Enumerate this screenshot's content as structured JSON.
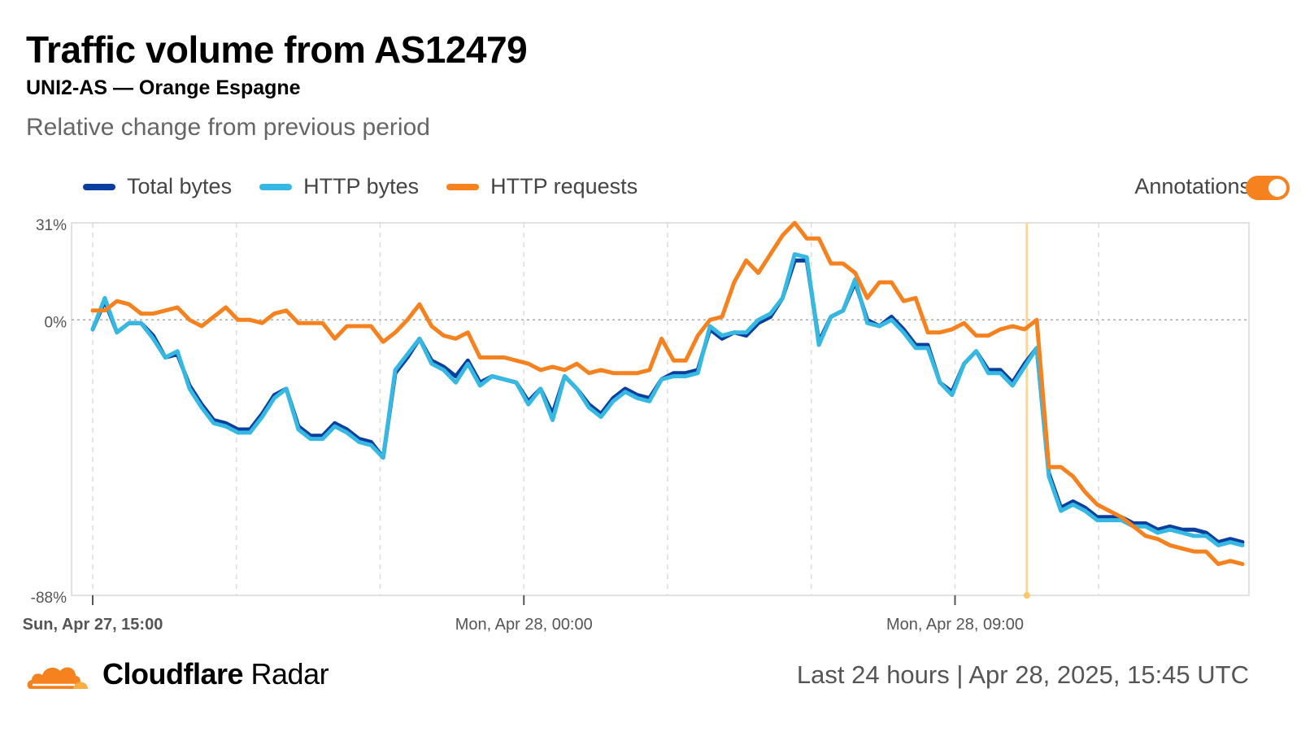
{
  "header": {
    "title": "Traffic volume from AS12479",
    "subtitle": "UNI2-AS — Orange Espagne",
    "caption": "Relative change from previous period"
  },
  "legend": [
    {
      "label": "Total bytes",
      "color": "#0a3fa0"
    },
    {
      "label": "HTTP bytes",
      "color": "#35b9e3"
    },
    {
      "label": "HTTP requests",
      "color": "#f6821f"
    }
  ],
  "annotations_toggle": {
    "label": "Annotations",
    "on": true,
    "color": "#f6821f"
  },
  "footer": {
    "brand_bold": "Cloudflare",
    "brand_regular": "Radar",
    "period": "Last 24 hours",
    "separator": "|",
    "timestamp": "Apr 28, 2025, 15:45 UTC"
  },
  "icons": {
    "brand": "cloudflare-cloud-icon"
  },
  "chart_data": {
    "type": "line",
    "ylim": [
      -88,
      31
    ],
    "y_ticks": [
      {
        "value": 31,
        "label": "31%"
      },
      {
        "value": 0,
        "label": "0%"
      },
      {
        "value": -88,
        "label": "-88%"
      }
    ],
    "x_domain_hours": [
      0,
      24
    ],
    "x_ticks": [
      {
        "hour": 0,
        "label": "Sun, Apr 27, 15:00",
        "bold": true
      },
      {
        "hour": 9,
        "label": "Mon, Apr 28, 00:00",
        "bold": false
      },
      {
        "hour": 18,
        "label": "Mon, Apr 28, 09:00",
        "bold": false
      }
    ],
    "vertical_grid_hours": [
      0,
      3,
      6,
      9,
      12,
      15,
      18,
      21
    ],
    "annotation_hour": 19.5,
    "series": [
      {
        "name": "Total bytes",
        "color": "#0a3fa0",
        "values": [
          -3,
          6,
          -4,
          -1,
          -1,
          -5,
          -12,
          -11,
          -21,
          -27,
          -32,
          -33,
          -35,
          -35,
          -30,
          -24,
          -22,
          -34,
          -37,
          -37,
          -33,
          -35,
          -38,
          -39,
          -44,
          -17,
          -12,
          -6,
          -13,
          -15,
          -18,
          -13,
          -20,
          -18,
          -19,
          -20,
          -26,
          -22,
          -30,
          -18,
          -22,
          -27,
          -30,
          -25,
          -22,
          -24,
          -25,
          -19,
          -17,
          -17,
          -16,
          -3,
          -6,
          -4,
          -5,
          -1,
          1,
          7,
          19,
          19,
          -7,
          1,
          3,
          12,
          0,
          -2,
          1,
          -3,
          -8,
          -8,
          -20,
          -23,
          -14,
          -10,
          -16,
          -16,
          -20,
          -14,
          -9,
          -49,
          -60,
          -58,
          -60,
          -63,
          -63,
          -63,
          -65,
          -65,
          -67,
          -66,
          -67,
          -67,
          -68,
          -71,
          -70,
          -71
        ]
      },
      {
        "name": "HTTP bytes",
        "color": "#35b9e3",
        "values": [
          -3,
          7,
          -4,
          -1,
          -1,
          -6,
          -12,
          -10,
          -22,
          -28,
          -33,
          -34,
          -36,
          -36,
          -31,
          -25,
          -22,
          -35,
          -38,
          -38,
          -34,
          -36,
          -39,
          -40,
          -44,
          -16,
          -11,
          -6,
          -14,
          -16,
          -20,
          -14,
          -21,
          -18,
          -19,
          -20,
          -27,
          -22,
          -32,
          -18,
          -22,
          -28,
          -31,
          -26,
          -23,
          -25,
          -26,
          -19,
          -18,
          -18,
          -17,
          -2,
          -5,
          -4,
          -4,
          0,
          2,
          7,
          21,
          20,
          -8,
          1,
          3,
          13,
          -1,
          -2,
          0,
          -4,
          -9,
          -9,
          -20,
          -24,
          -14,
          -10,
          -17,
          -17,
          -21,
          -15,
          -9,
          -50,
          -61,
          -59,
          -61,
          -64,
          -64,
          -64,
          -66,
          -66,
          -68,
          -67,
          -68,
          -69,
          -69,
          -72,
          -71,
          -72
        ]
      },
      {
        "name": "HTTP requests",
        "color": "#f6821f",
        "values": [
          3,
          3,
          6,
          5,
          2,
          2,
          3,
          4,
          0,
          -2,
          1,
          4,
          0,
          0,
          -1,
          2,
          3,
          -1,
          -1,
          -1,
          -6,
          -2,
          -2,
          -2,
          -7,
          -4,
          0,
          5,
          -2,
          -5,
          -6,
          -4,
          -12,
          -12,
          -12,
          -13,
          -14,
          -16,
          -15,
          -16,
          -14,
          -17,
          -16,
          -17,
          -17,
          -17,
          -16,
          -6,
          -13,
          -13,
          -5,
          0,
          1,
          12,
          19,
          15,
          21,
          27,
          31,
          26,
          26,
          18,
          18,
          15,
          7,
          12,
          12,
          6,
          7,
          -4,
          -4,
          -3,
          -1,
          -5,
          -5,
          -3,
          -2,
          -3,
          0,
          -47,
          -47,
          -50,
          -55,
          -59,
          -61,
          -63,
          -66,
          -69,
          -70,
          -72,
          -73,
          -74,
          -74,
          -78,
          -77,
          -78
        ]
      }
    ]
  }
}
